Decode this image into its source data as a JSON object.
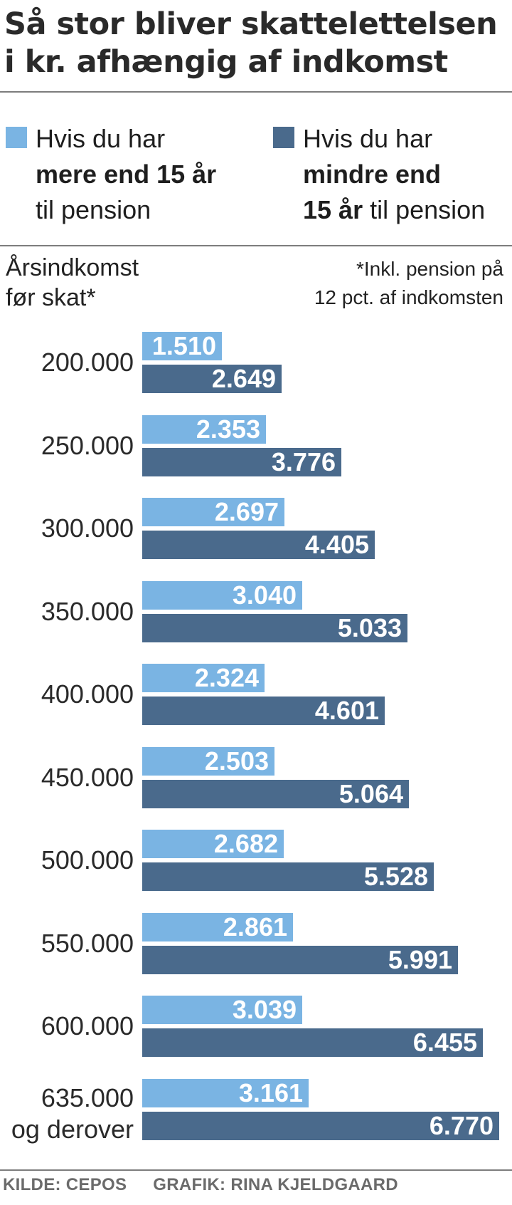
{
  "chart_data": {
    "type": "bar",
    "orientation": "horizontal",
    "title_lines": [
      "Så stor bliver skattelettelsen",
      "i kr. afhængig af indkomst"
    ],
    "ylabel_lines": [
      "Årsindkomst",
      "før skat*"
    ],
    "footnote_lines": [
      "*Inkl. pension på",
      "12 pct. af indkomsten"
    ],
    "categories": [
      [
        "200.000"
      ],
      [
        "250.000"
      ],
      [
        "300.000"
      ],
      [
        "350.000"
      ],
      [
        "400.000"
      ],
      [
        "450.000"
      ],
      [
        "500.000"
      ],
      [
        "550.000"
      ],
      [
        "600.000"
      ],
      [
        "635.000",
        "og derover"
      ]
    ],
    "series": [
      {
        "legend_lines": [
          [
            "Hvis du har",
            ""
          ],
          [
            "",
            "mere end 15 år"
          ],
          [
            "til pension",
            ""
          ]
        ],
        "color": "#7ab4e3",
        "values": [
          1510,
          2353,
          2697,
          3040,
          2324,
          2503,
          2682,
          2861,
          3039,
          3161
        ],
        "labels": [
          "1.510",
          "2.353",
          "2.697",
          "3.040",
          "2.324",
          "2.503",
          "2.682",
          "2.861",
          "3.039",
          "3.161"
        ]
      },
      {
        "legend_lines": [
          [
            "Hvis du har",
            ""
          ],
          [
            "",
            "mindre end"
          ],
          [
            "",
            "15 år",
            " til pension"
          ]
        ],
        "color": "#4a6a8c",
        "values": [
          2649,
          3776,
          4405,
          5033,
          4601,
          5064,
          5528,
          5991,
          6455,
          6770
        ],
        "labels": [
          "2.649",
          "3.776",
          "4.405",
          "5.033",
          "4.601",
          "5.064",
          "5.528",
          "5.991",
          "6.455",
          "6.770"
        ]
      }
    ],
    "xlim": [
      0,
      6770
    ],
    "grid": false,
    "legend_position": "top"
  },
  "credits": {
    "source": "KILDE: CEPOS",
    "graphic": "GRAFIK: RINA KJELDGAARD"
  }
}
